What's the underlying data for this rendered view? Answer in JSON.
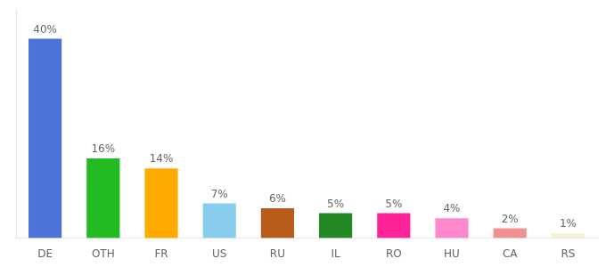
{
  "chart_data": {
    "type": "bar",
    "categories": [
      "DE",
      "OTH",
      "FR",
      "US",
      "RU",
      "IL",
      "RO",
      "HU",
      "CA",
      "RS"
    ],
    "values": [
      40,
      16,
      14,
      7,
      6,
      5,
      5,
      4,
      2,
      1
    ],
    "value_labels": [
      "40%",
      "16%",
      "14%",
      "7%",
      "6%",
      "5%",
      "5%",
      "4%",
      "2%",
      "1%"
    ],
    "data_labels": true,
    "colors": [
      "#4d72d9",
      "#22bb22",
      "#ffaa00",
      "#88ccee",
      "#b85c1a",
      "#228822",
      "#ff2299",
      "#ff88cc",
      "#f09090",
      "#f5f0d8"
    ],
    "ylim": [
      0,
      46
    ],
    "tick_labels": "x",
    "grid": false
  }
}
